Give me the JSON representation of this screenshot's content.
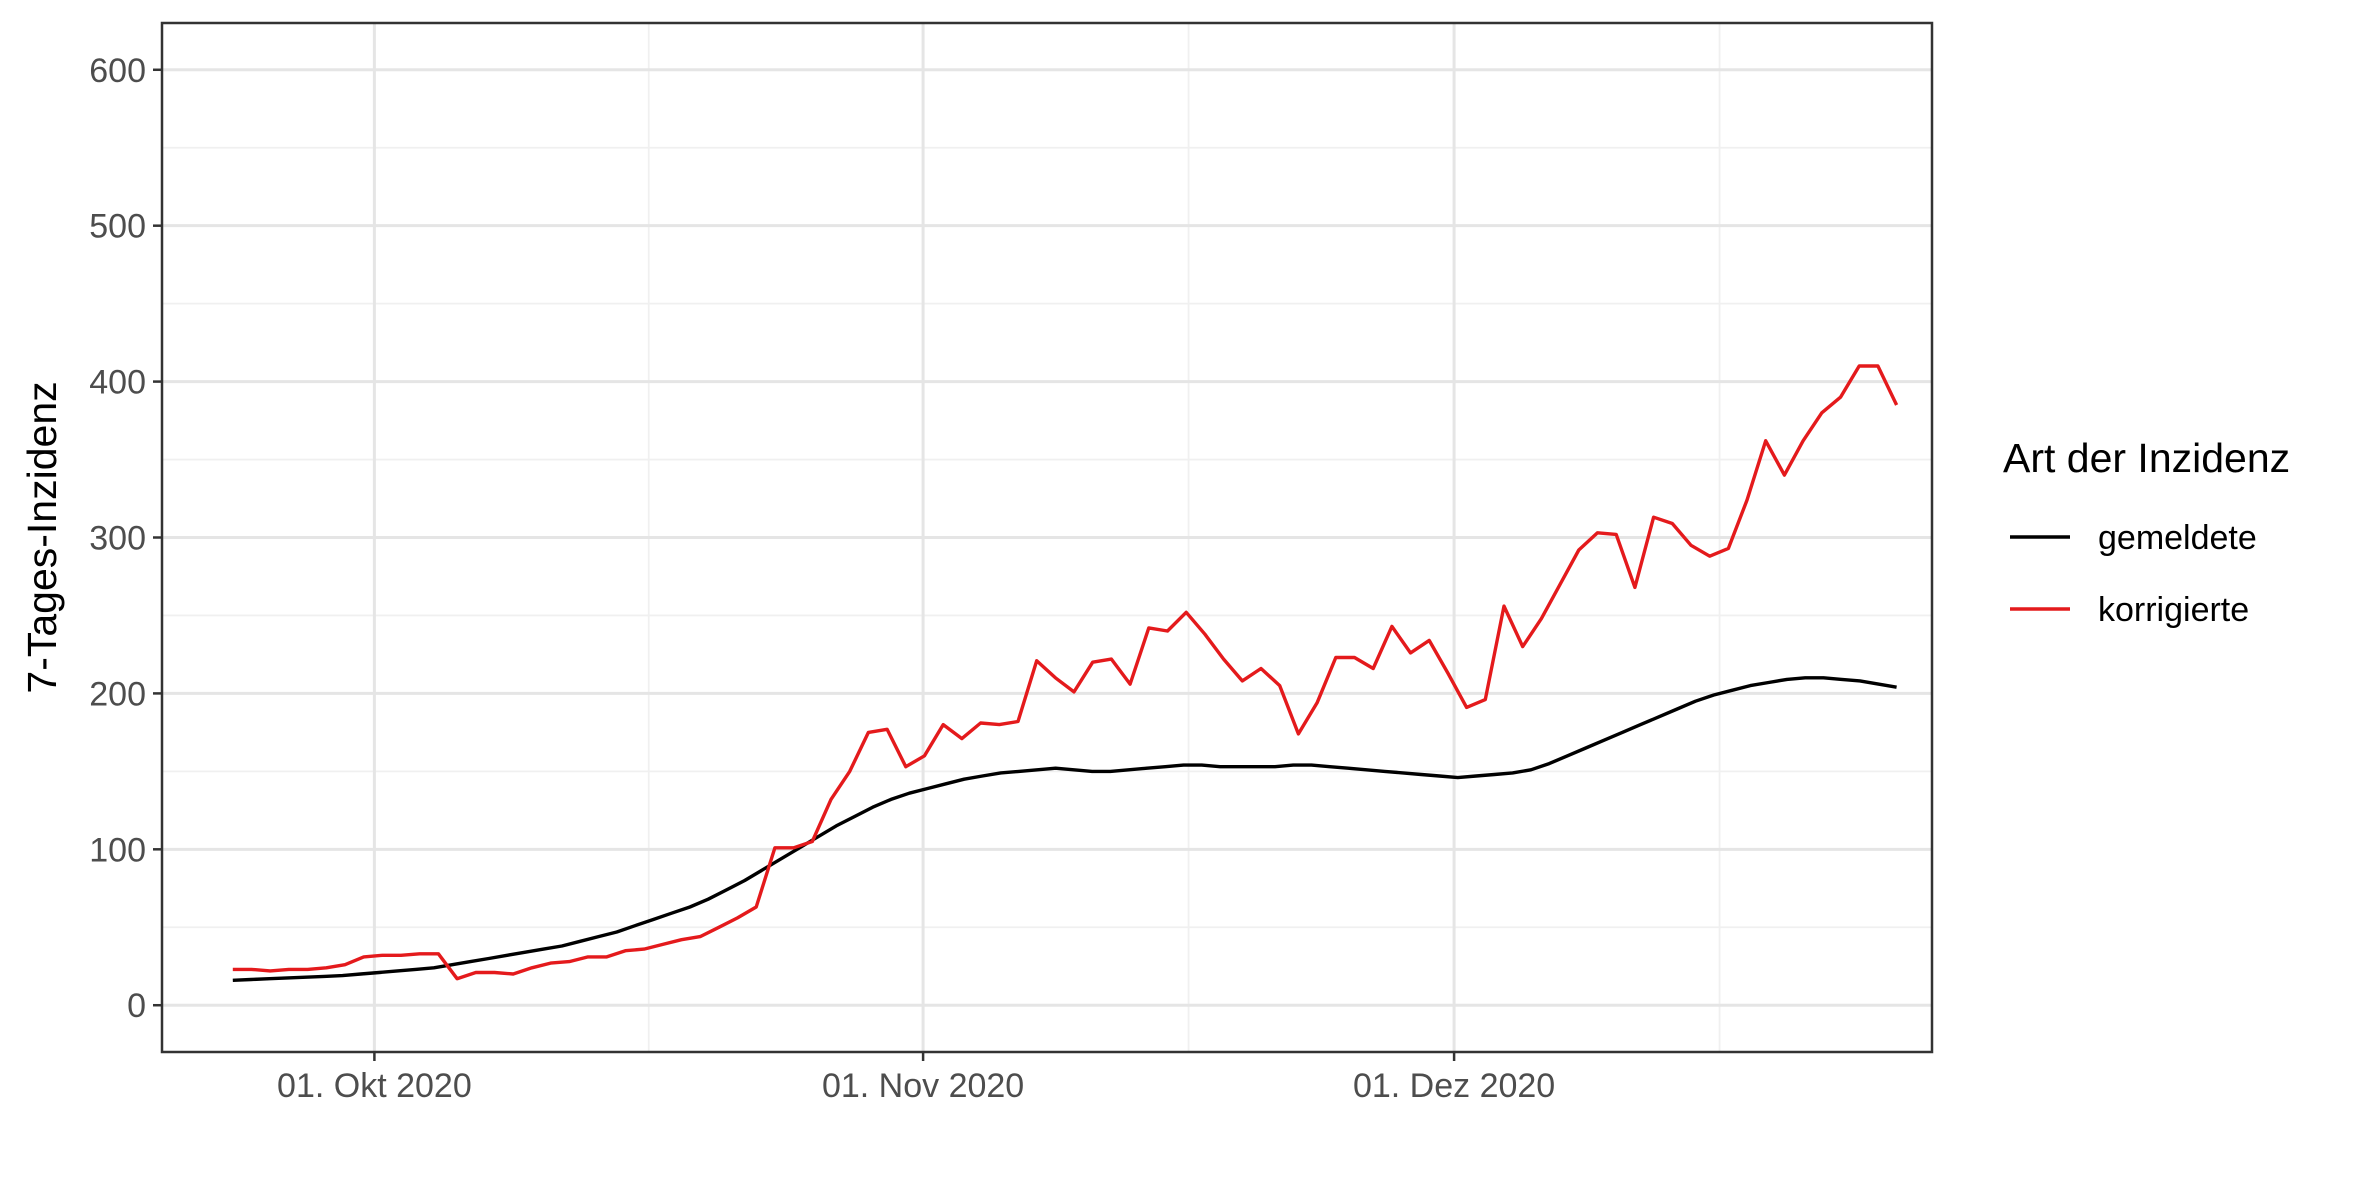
{
  "chart_data": {
    "type": "line",
    "title": "",
    "xlabel": "",
    "ylabel": "7-Tages-Inzidenz",
    "x_start": "2020-09-23",
    "x_end": "2020-12-26",
    "xlim": [
      "2020-09-19",
      "2020-12-28"
    ],
    "ylim": [
      -30,
      630
    ],
    "y_ticks": [
      0,
      100,
      200,
      300,
      400,
      500,
      600
    ],
    "y_tick_labels": [
      "0",
      "100",
      "200",
      "300",
      "400",
      "500",
      "600"
    ],
    "x_ticks": [
      "2020-10-01",
      "2020-11-01",
      "2020-12-01"
    ],
    "x_tick_labels": [
      "01. Okt 2020",
      "01. Nov 2020",
      "01. Dez 2020"
    ],
    "grid": true,
    "legend": {
      "title": "Art der Inzidenz",
      "position": "right"
    },
    "series": [
      {
        "name": "gemeldete",
        "color": "#000000",
        "values": [
          16,
          16.5,
          17,
          17.5,
          18,
          18.5,
          19,
          20,
          21,
          22,
          23,
          24,
          26,
          28,
          30,
          32,
          34,
          36,
          38,
          41,
          44,
          47,
          51,
          55,
          59,
          63,
          68,
          74,
          80,
          87,
          94,
          101,
          108,
          115,
          121,
          127,
          132,
          136,
          139,
          142,
          145,
          147,
          149,
          150,
          151,
          152,
          151,
          150,
          150,
          151,
          152,
          153,
          154,
          154,
          153,
          153,
          153,
          153,
          154,
          154,
          153,
          152,
          151,
          150,
          149,
          148,
          147,
          146,
          147,
          148,
          149,
          151,
          155,
          160,
          165,
          170,
          175,
          180,
          185,
          190,
          195,
          199,
          202,
          205,
          207,
          209,
          210,
          210,
          209,
          208,
          206,
          204
        ]
      },
      {
        "name": "korrigierte",
        "color": "#e41a1c",
        "values": [
          23,
          23,
          22,
          23,
          23,
          24,
          26,
          31,
          32,
          32,
          33,
          33,
          17,
          21,
          21,
          20,
          24,
          27,
          28,
          31,
          31,
          35,
          36,
          39,
          42,
          44,
          50,
          56,
          63,
          101,
          101,
          105,
          132,
          150,
          175,
          177,
          153,
          160,
          180,
          171,
          181,
          180,
          182,
          221,
          210,
          201,
          220,
          222,
          206,
          242,
          240,
          252,
          238,
          222,
          208,
          216,
          205,
          174,
          194,
          223,
          223,
          216,
          243,
          226,
          234,
          213,
          191,
          196,
          256,
          230,
          248,
          270,
          292,
          303,
          302,
          268,
          313,
          309,
          295,
          288,
          293,
          324,
          362,
          340,
          362,
          380,
          390,
          410,
          410,
          385
        ]
      }
    ]
  }
}
